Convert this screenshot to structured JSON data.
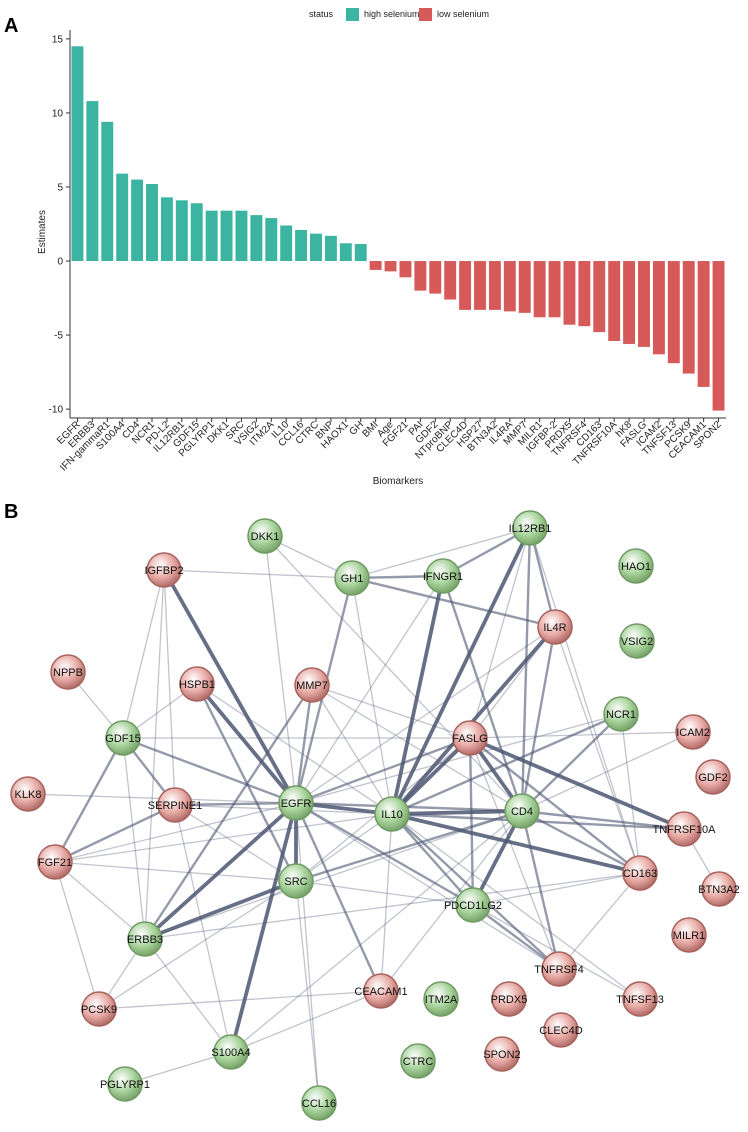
{
  "panels": {
    "a_label": "A",
    "b_label": "B"
  },
  "colors": {
    "high": "#3bb5a2",
    "low": "#d65a5a",
    "node_high_fill": "#a6d29a",
    "node_high_stroke": "#6f9b63",
    "node_low_fill": "#e7a9a4",
    "node_low_stroke": "#a8625d",
    "edge": "#4c5672"
  },
  "chart_data": [
    {
      "type": "bar",
      "title": "",
      "xlabel": "Biomarkers",
      "ylabel": "Estimates",
      "ylim": [
        -10.6,
        15.6
      ],
      "yticks": [
        -10,
        -5,
        0,
        5,
        10,
        15
      ],
      "legend": {
        "title": "status",
        "placement": "top",
        "entries": [
          {
            "label": "high selenium",
            "key": "high"
          },
          {
            "label": "low selenium",
            "key": "low"
          }
        ]
      },
      "categories": [
        "EGFR",
        "ERBB3",
        "IFN-gammaR1",
        "S100A4",
        "CD4",
        "NCR1",
        "PD-L2",
        "IL12RB1",
        "GDF15",
        "PGLYRP1",
        "DKK1",
        "SRC",
        "VSIG2",
        "ITM2A",
        "IL10",
        "CCL16",
        "CTRC",
        "BNP",
        "HAOX1",
        "GH",
        "BMI",
        "Age",
        "FGF21",
        "PAI",
        "GDF2",
        "NTproBNP",
        "CLEC4D",
        "HSP27",
        "BTN3A2",
        "IL4RA",
        "MMP7",
        "MILR1",
        "IGFBP-2",
        "PRDX5",
        "TNFRSF4",
        "CD163",
        "TNFRSF10A",
        "hK8",
        "FASLG",
        "ICAM2",
        "TNFSF13",
        "PCSK9",
        "CEACAM1",
        "SPON2"
      ],
      "values": [
        14.5,
        10.8,
        9.4,
        5.9,
        5.5,
        5.2,
        4.3,
        4.1,
        3.9,
        3.4,
        3.4,
        3.4,
        3.1,
        2.9,
        2.4,
        2.1,
        1.85,
        1.7,
        1.2,
        1.15,
        -0.6,
        -0.7,
        -1.1,
        -2.0,
        -2.2,
        -2.6,
        -3.3,
        -3.3,
        -3.3,
        -3.4,
        -3.5,
        -3.8,
        -3.8,
        -4.3,
        -4.4,
        -4.8,
        -5.4,
        -5.6,
        -5.8,
        -6.3,
        -6.9,
        -7.6,
        -8.5,
        -10.1
      ],
      "status": [
        "high",
        "high",
        "high",
        "high",
        "high",
        "high",
        "high",
        "high",
        "high",
        "high",
        "high",
        "high",
        "high",
        "high",
        "high",
        "high",
        "high",
        "high",
        "high",
        "high",
        "low",
        "low",
        "low",
        "low",
        "low",
        "low",
        "low",
        "low",
        "low",
        "low",
        "low",
        "low",
        "low",
        "low",
        "low",
        "low",
        "low",
        "low",
        "low",
        "low",
        "low",
        "low",
        "low",
        "low"
      ]
    },
    {
      "type": "network",
      "nodes": [
        {
          "id": "DKK1",
          "label": "DKK1",
          "status": "high"
        },
        {
          "id": "IL12RB1",
          "label": "IL12RB1",
          "status": "high"
        },
        {
          "id": "HAO1",
          "label": "HAO1",
          "status": "high"
        },
        {
          "id": "IGFBP2",
          "label": "IGFBP2",
          "status": "low"
        },
        {
          "id": "GH1",
          "label": "GH1",
          "status": "high"
        },
        {
          "id": "IFNGR1",
          "label": "IFNGR1",
          "status": "high"
        },
        {
          "id": "IL4R",
          "label": "IL4R",
          "status": "low"
        },
        {
          "id": "VSIG2",
          "label": "VSIG2",
          "status": "high"
        },
        {
          "id": "NPPB",
          "label": "NPPB",
          "status": "low"
        },
        {
          "id": "HSPB1",
          "label": "HSPB1",
          "status": "low"
        },
        {
          "id": "MMP7",
          "label": "MMP7",
          "status": "low"
        },
        {
          "id": "NCR1",
          "label": "NCR1",
          "status": "high"
        },
        {
          "id": "ICAM2",
          "label": "ICAM2",
          "status": "low"
        },
        {
          "id": "GDF15",
          "label": "GDF15",
          "status": "high"
        },
        {
          "id": "FASLG",
          "label": "FASLG",
          "status": "low"
        },
        {
          "id": "GDF2",
          "label": "GDF2",
          "status": "low"
        },
        {
          "id": "KLK8",
          "label": "KLK8",
          "status": "low"
        },
        {
          "id": "SERPINE1",
          "label": "SERPINE1",
          "status": "low"
        },
        {
          "id": "EGFR",
          "label": "EGFR",
          "status": "high"
        },
        {
          "id": "IL10",
          "label": "IL10",
          "status": "high"
        },
        {
          "id": "CD4",
          "label": "CD4",
          "status": "high"
        },
        {
          "id": "TNFRSF10A",
          "label": "TNFRSF10A",
          "status": "low"
        },
        {
          "id": "FGF21",
          "label": "FGF21",
          "status": "low"
        },
        {
          "id": "CD163",
          "label": "CD163",
          "status": "low"
        },
        {
          "id": "BTN3A2",
          "label": "BTN3A2",
          "status": "low"
        },
        {
          "id": "SRC",
          "label": "SRC",
          "status": "high"
        },
        {
          "id": "PDCD1LG2",
          "label": "PDCD1LG2",
          "status": "high"
        },
        {
          "id": "ERBB3",
          "label": "ERBB3",
          "status": "high"
        },
        {
          "id": "MILR1",
          "label": "MILR1",
          "status": "low"
        },
        {
          "id": "TNFRSF4",
          "label": "TNFRSF4",
          "status": "low"
        },
        {
          "id": "CEACAM1",
          "label": "CEACAM1",
          "status": "low"
        },
        {
          "id": "ITM2A",
          "label": "ITM2A",
          "status": "high"
        },
        {
          "id": "PRDX5",
          "label": "PRDX5",
          "status": "low"
        },
        {
          "id": "TNFSF13",
          "label": "TNFSF13",
          "status": "low"
        },
        {
          "id": "PCSK9",
          "label": "PCSK9",
          "status": "low"
        },
        {
          "id": "CLEC4D",
          "label": "CLEC4D",
          "status": "low"
        },
        {
          "id": "S100A4",
          "label": "S100A4",
          "status": "high"
        },
        {
          "id": "SPON2",
          "label": "SPON2",
          "status": "low"
        },
        {
          "id": "CTRC",
          "label": "CTRC",
          "status": "high"
        },
        {
          "id": "PGLYRP1",
          "label": "PGLYRP1",
          "status": "high"
        },
        {
          "id": "CCL16",
          "label": "CCL16",
          "status": "high"
        }
      ],
      "edges": [
        [
          "IL12RB1",
          "IFNGR1",
          2
        ],
        [
          "IL12RB1",
          "GH1",
          1
        ],
        [
          "IL12RB1",
          "IL10",
          3
        ],
        [
          "IL12RB1",
          "CD4",
          2
        ],
        [
          "IL12RB1",
          "IL4R",
          2
        ],
        [
          "IL12RB1",
          "FASLG",
          1
        ],
        [
          "IL12RB1",
          "CD163",
          1
        ],
        [
          "GH1",
          "IFNGR1",
          2
        ],
        [
          "GH1",
          "IGFBP2",
          1
        ],
        [
          "GH1",
          "EGFR",
          2
        ],
        [
          "GH1",
          "IL4R",
          2
        ],
        [
          "GH1",
          "IL10",
          1
        ],
        [
          "DKK1",
          "EGFR",
          1
        ],
        [
          "DKK1",
          "CD4",
          1
        ],
        [
          "DKK1",
          "GH1",
          1
        ],
        [
          "IFNGR1",
          "IL10",
          3
        ],
        [
          "IFNGR1",
          "CD4",
          2
        ],
        [
          "IFNGR1",
          "EGFR",
          1
        ],
        [
          "IL4R",
          "IL10",
          3
        ],
        [
          "IL4R",
          "CD4",
          2
        ],
        [
          "IL4R",
          "FASLG",
          1
        ],
        [
          "IL4R",
          "EGFR",
          1
        ],
        [
          "IGFBP2",
          "EGFR",
          3
        ],
        [
          "IGFBP2",
          "SERPINE1",
          1
        ],
        [
          "IGFBP2",
          "GDF15",
          1
        ],
        [
          "IGFBP2",
          "ERBB3",
          1
        ],
        [
          "HSPB1",
          "EGFR",
          3
        ],
        [
          "HSPB1",
          "SRC",
          2
        ],
        [
          "HSPB1",
          "GDF15",
          1
        ],
        [
          "HSPB1",
          "IL10",
          1
        ],
        [
          "MMP7",
          "EGFR",
          2
        ],
        [
          "MMP7",
          "IL10",
          1
        ],
        [
          "MMP7",
          "ERBB3",
          2
        ],
        [
          "MMP7",
          "CD4",
          1
        ],
        [
          "MMP7",
          "FASLG",
          1
        ],
        [
          "NPPB",
          "GDF15",
          1
        ],
        [
          "NCR1",
          "CD4",
          2
        ],
        [
          "NCR1",
          "IL10",
          2
        ],
        [
          "NCR1",
          "CD163",
          1
        ],
        [
          "NCR1",
          "EGFR",
          1
        ],
        [
          "GDF15",
          "EGFR",
          2
        ],
        [
          "GDF15",
          "SERPINE1",
          2
        ],
        [
          "GDF15",
          "FGF21",
          2
        ],
        [
          "GDF15",
          "ERBB3",
          1
        ],
        [
          "GDF15",
          "FASLG",
          1
        ],
        [
          "FASLG",
          "IL10",
          3
        ],
        [
          "FASLG",
          "CD4",
          3
        ],
        [
          "FASLG",
          "TNFRSF10A",
          3
        ],
        [
          "FASLG",
          "EGFR",
          2
        ],
        [
          "FASLG",
          "PDCD1LG2",
          2
        ],
        [
          "FASLG",
          "CD163",
          2
        ],
        [
          "FASLG",
          "ICAM2",
          1
        ],
        [
          "FASLG",
          "SRC",
          1
        ],
        [
          "FASLG",
          "TNFRSF4",
          1
        ],
        [
          "KLK8",
          "EGFR",
          1
        ],
        [
          "SERPINE1",
          "EGFR",
          2
        ],
        [
          "SERPINE1",
          "FGF21",
          2
        ],
        [
          "SERPINE1",
          "IL10",
          1
        ],
        [
          "SERPINE1",
          "S100A4",
          1
        ],
        [
          "SERPINE1",
          "SRC",
          1
        ],
        [
          "EGFR",
          "IL10",
          3
        ],
        [
          "EGFR",
          "SRC",
          3
        ],
        [
          "EGFR",
          "ERBB3",
          3
        ],
        [
          "EGFR",
          "S100A4",
          3
        ],
        [
          "EGFR",
          "CD4",
          2
        ],
        [
          "EGFR",
          "FGF21",
          1
        ],
        [
          "EGFR",
          "PDCD1LG2",
          2
        ],
        [
          "EGFR",
          "CEACAM1",
          2
        ],
        [
          "EGFR",
          "TNFRSF4",
          1
        ],
        [
          "EGFR",
          "CCL16",
          1
        ],
        [
          "IL10",
          "CD4",
          3
        ],
        [
          "IL10",
          "CD163",
          3
        ],
        [
          "IL10",
          "PDCD1LG2",
          2
        ],
        [
          "IL10",
          "TNFRSF4",
          2
        ],
        [
          "IL10",
          "TNFRSF10A",
          2
        ],
        [
          "IL10",
          "SRC",
          1
        ],
        [
          "IL10",
          "FGF21",
          1
        ],
        [
          "IL10",
          "TNFSF13",
          1
        ],
        [
          "IL10",
          "CEACAM1",
          1
        ],
        [
          "CD4",
          "PDCD1LG2",
          3
        ],
        [
          "CD4",
          "TNFRSF10A",
          2
        ],
        [
          "CD4",
          "CD163",
          2
        ],
        [
          "CD4",
          "SRC",
          2
        ],
        [
          "CD4",
          "TNFRSF4",
          2
        ],
        [
          "CD4",
          "ERBB3",
          1
        ],
        [
          "CD4",
          "ICAM2",
          1
        ],
        [
          "CD4",
          "CEACAM1",
          1
        ],
        [
          "TNFRSF10A",
          "BTN3A2",
          1
        ],
        [
          "CD163",
          "TNFRSF4",
          1
        ],
        [
          "CD163",
          "PDCD1LG2",
          1
        ],
        [
          "CD163",
          "IL4R",
          1
        ],
        [
          "SRC",
          "ERBB3",
          3
        ],
        [
          "SRC",
          "PDCD1LG2",
          1
        ],
        [
          "SRC",
          "CCL16",
          1
        ],
        [
          "SRC",
          "FGF21",
          1
        ],
        [
          "PDCD1LG2",
          "TNFRSF4",
          2
        ],
        [
          "PDCD1LG2",
          "TNFSF13",
          1
        ],
        [
          "ERBB3",
          "PCSK9",
          1
        ],
        [
          "ERBB3",
          "S100A4",
          1
        ],
        [
          "ERBB3",
          "FGF21",
          1
        ],
        [
          "ERBB3",
          "CD163",
          1
        ],
        [
          "FGF21",
          "PCSK9",
          1
        ],
        [
          "PCSK9",
          "SRC",
          1
        ],
        [
          "PCSK9",
          "CEACAM1",
          1
        ],
        [
          "S100A4",
          "PGLYRP1",
          1
        ],
        [
          "S100A4",
          "CEACAM1",
          1
        ],
        [
          "S100A4",
          "CD4",
          1
        ]
      ]
    }
  ]
}
